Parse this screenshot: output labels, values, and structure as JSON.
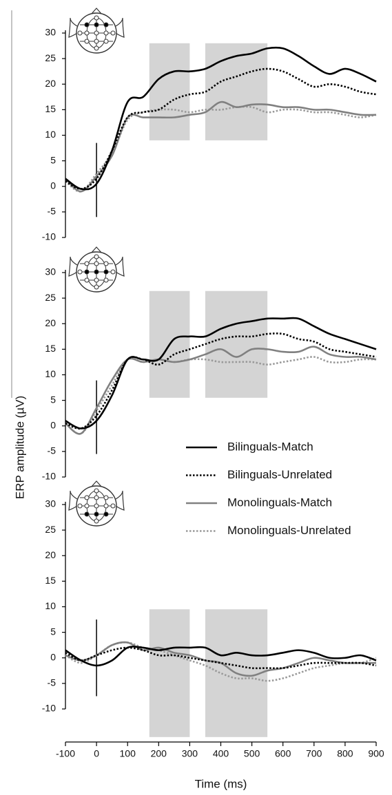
{
  "chart_data": [
    {
      "type": "line",
      "x": [
        -100,
        -50,
        0,
        50,
        100,
        150,
        200,
        250,
        300,
        350,
        400,
        450,
        500,
        550,
        600,
        650,
        700,
        750,
        800,
        850,
        900
      ],
      "xlim": [
        -100,
        900
      ],
      "ylim": [
        -10,
        30
      ],
      "yticks": [
        -10,
        -5,
        0,
        5,
        10,
        15,
        20,
        25,
        30
      ],
      "shaded_regions": [
        {
          "x": [
            170,
            300
          ],
          "y": [
            9,
            28
          ]
        },
        {
          "x": [
            350,
            550
          ],
          "y": [
            9,
            28
          ]
        }
      ],
      "onset_marker": {
        "x": 0,
        "y": [
          -6,
          8.5
        ]
      },
      "series": [
        {
          "color": "#000000",
          "dashed": false,
          "values": [
            1.5,
            -0.5,
            0.5,
            7,
            16.5,
            17.5,
            21,
            22.5,
            22.5,
            23,
            24.5,
            25.5,
            26,
            27,
            27,
            25.5,
            23.5,
            22,
            23,
            22,
            20.5
          ]
        },
        {
          "color": "#000000",
          "dashed": true,
          "values": [
            1,
            -0.5,
            1.5,
            7,
            13.5,
            14.5,
            15,
            17,
            18,
            18.5,
            20.5,
            21.5,
            22.5,
            23,
            22.5,
            21,
            19.5,
            20,
            19.5,
            18.5,
            18
          ]
        },
        {
          "color": "#808080",
          "dashed": false,
          "values": [
            1.5,
            -1,
            2,
            6,
            13.5,
            13.5,
            13.5,
            13.5,
            14,
            14.5,
            16.5,
            15.5,
            16,
            16,
            15.5,
            15.5,
            15,
            15,
            14.5,
            14,
            14
          ]
        },
        {
          "color": "#999999",
          "dashed": true,
          "values": [
            1,
            -1,
            2.5,
            6.5,
            13,
            14.5,
            15,
            15,
            14.5,
            15,
            15,
            15.5,
            15.5,
            14.5,
            15,
            15,
            14.5,
            14.5,
            14,
            13.5,
            14
          ]
        }
      ]
    },
    {
      "type": "line",
      "x": [
        -100,
        -50,
        0,
        50,
        100,
        150,
        200,
        250,
        300,
        350,
        400,
        450,
        500,
        550,
        600,
        650,
        700,
        750,
        800,
        850,
        900
      ],
      "xlim": [
        -100,
        900
      ],
      "ylim": [
        -10,
        30
      ],
      "yticks": [
        -10,
        -5,
        0,
        5,
        10,
        15,
        20,
        25,
        30
      ],
      "shaded_regions": [
        {
          "x": [
            170,
            300
          ],
          "y": [
            5.5,
            26.4
          ]
        },
        {
          "x": [
            350,
            550
          ],
          "y": [
            5.5,
            26.4
          ]
        }
      ],
      "onset_marker": {
        "x": 0,
        "y": [
          -5.5,
          8.9
        ]
      },
      "legend": "right",
      "series": [
        {
          "name": "Bilinguals-Match",
          "color": "#000000",
          "dashed": false,
          "values": [
            1,
            -0.5,
            1,
            6,
            13,
            13,
            13,
            17,
            17.5,
            17.5,
            19,
            20,
            20.5,
            21,
            21,
            21,
            19.5,
            18,
            17,
            16,
            15
          ]
        },
        {
          "name": "Bilinguals-Unrelated",
          "color": "#000000",
          "dashed": true,
          "values": [
            0.5,
            -0.5,
            2,
            7,
            13,
            13,
            12,
            14,
            15,
            16,
            17,
            17.5,
            17.5,
            18,
            18,
            17,
            16.5,
            15,
            14.5,
            14,
            13.5
          ]
        },
        {
          "name": "Monolinguals-Match",
          "color": "#808080",
          "dashed": false,
          "values": [
            0.5,
            -1.5,
            3.5,
            9,
            13,
            12.5,
            13,
            12.5,
            13,
            14,
            15,
            13.5,
            15,
            15,
            14.5,
            14.5,
            15.5,
            14,
            13.5,
            13.5,
            13
          ]
        },
        {
          "name": "Monolinguals-Unrelated",
          "color": "#999999",
          "dashed": true,
          "values": [
            0.5,
            -1.5,
            3,
            8,
            13,
            12.5,
            13,
            12.5,
            13,
            13,
            12.5,
            12.5,
            12.5,
            12,
            12.5,
            13,
            13.5,
            12.5,
            12.5,
            13,
            13
          ]
        }
      ]
    },
    {
      "type": "line",
      "x": [
        -100,
        -50,
        0,
        50,
        100,
        150,
        200,
        250,
        300,
        350,
        400,
        450,
        500,
        550,
        600,
        650,
        700,
        750,
        800,
        850,
        900
      ],
      "xlim": [
        -100,
        900
      ],
      "xticks": [
        -100,
        0,
        100,
        200,
        300,
        400,
        500,
        600,
        700,
        800,
        900
      ],
      "xlabel": "Time (ms)",
      "ylabel": "ERP amplitude (µV)",
      "ylim": [
        -10,
        30
      ],
      "yticks": [
        -10,
        -5,
        0,
        5,
        10,
        15,
        20,
        25,
        30
      ],
      "shaded_regions": [
        {
          "x": [
            170,
            300
          ],
          "y": [
            -15.5,
            9.5
          ]
        },
        {
          "x": [
            350,
            550
          ],
          "y": [
            -15.5,
            9.5
          ]
        }
      ],
      "onset_marker": {
        "x": 0,
        "y": [
          -7.5,
          7.5
        ]
      },
      "series": [
        {
          "color": "#000000",
          "dashed": false,
          "values": [
            1.5,
            -0.5,
            -1.5,
            -0.5,
            2,
            2,
            1.5,
            2,
            2,
            2,
            0.5,
            1,
            0.5,
            0.5,
            1,
            1.5,
            1,
            0,
            0,
            0.5,
            -0.5
          ]
        },
        {
          "color": "#000000",
          "dashed": true,
          "values": [
            1,
            -0.5,
            0.5,
            1.5,
            2,
            1.5,
            0.5,
            0.5,
            0,
            -0.5,
            -1,
            -1.5,
            -2,
            -2,
            -2,
            -1.5,
            -1,
            -1,
            -1,
            -1,
            -1.5
          ]
        },
        {
          "color": "#808080",
          "dashed": false,
          "values": [
            0.5,
            -0.5,
            0.5,
            2.5,
            3,
            1.5,
            2,
            1,
            0.5,
            -0.5,
            -1,
            -3,
            -3.5,
            -2.5,
            -2,
            -1,
            0,
            -0.5,
            -1,
            -1,
            -1
          ]
        },
        {
          "color": "#999999",
          "dashed": true,
          "values": [
            0.5,
            -1,
            0.5,
            2.5,
            3,
            2,
            1.5,
            0.5,
            -0.5,
            -1.5,
            -3,
            -4,
            -4,
            -4.5,
            -4,
            -3,
            -2,
            -1.5,
            -1,
            -1,
            0
          ]
        }
      ]
    }
  ]
}
